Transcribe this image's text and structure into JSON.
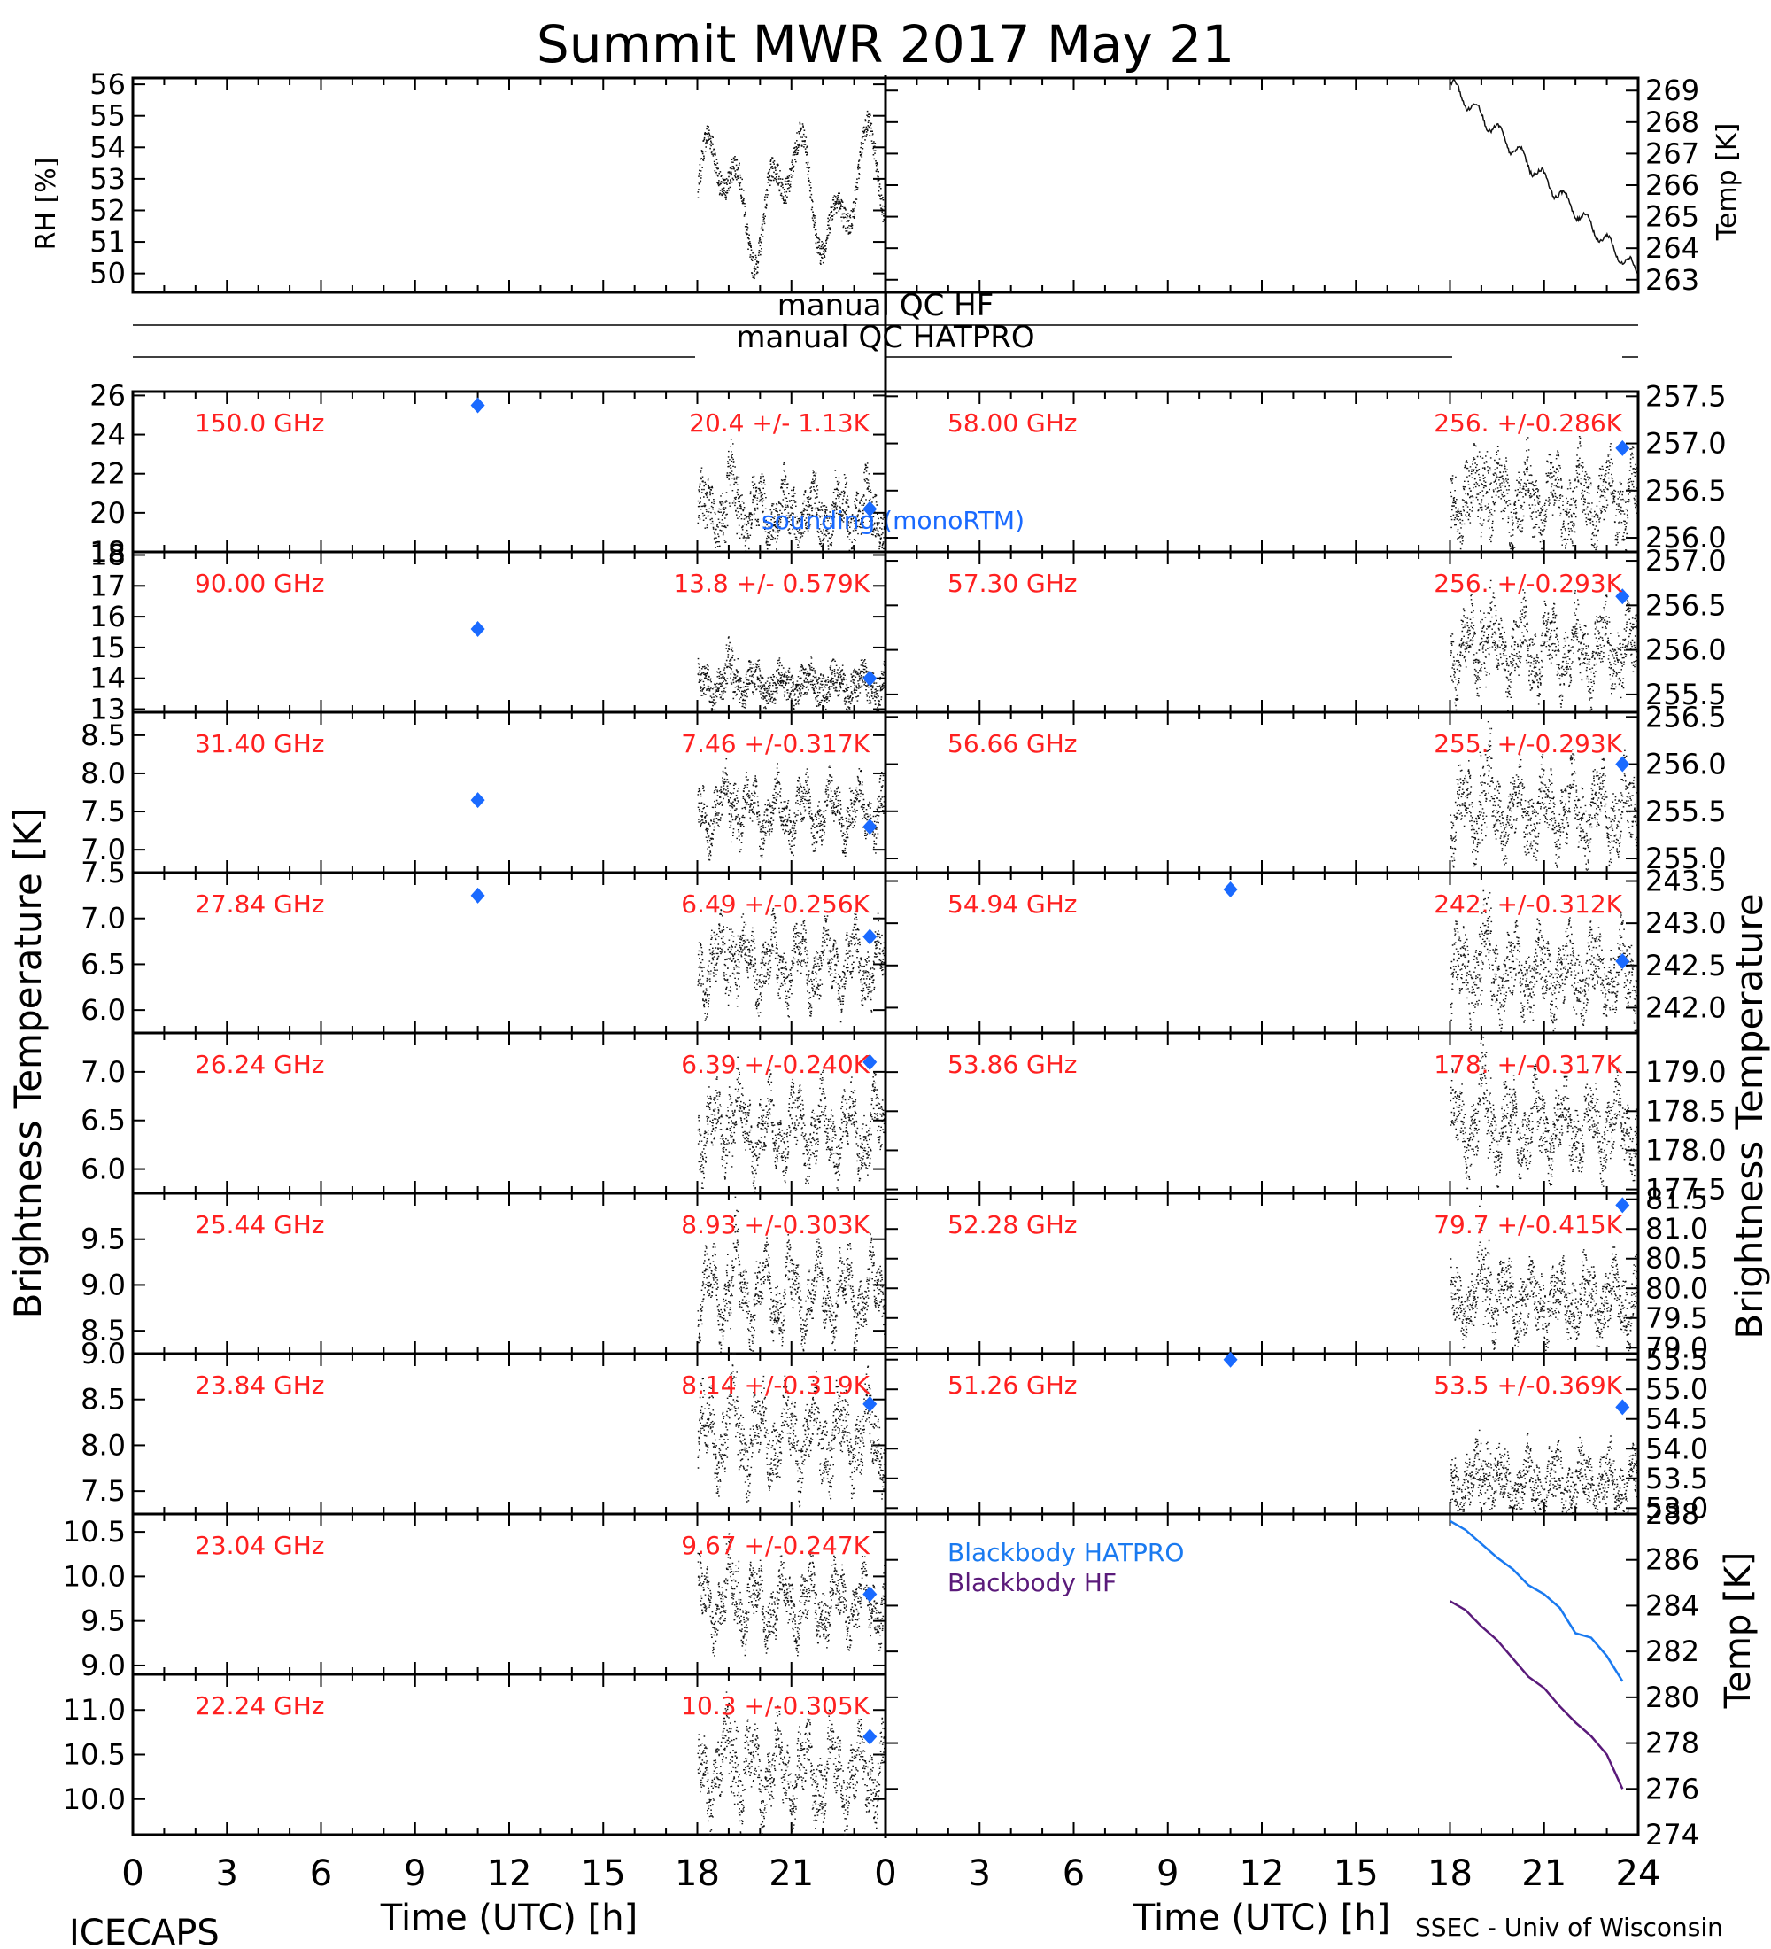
{
  "title": "Summit MWR 2017 May 21",
  "colors": {
    "axis": "#000000",
    "data": "#111111",
    "label_red": "#ff2020",
    "sounding_blue": "#1a6aff",
    "bb_hatpro": "#1a7af0",
    "bb_hf": "#5a1a7a"
  },
  "met": {
    "rh_label": "RH [%]",
    "rh_ticks": [
      "56",
      "55",
      "54",
      "53",
      "52",
      "51",
      "50"
    ],
    "temp_label": "Temp [K]",
    "temp_ticks": [
      "269",
      "268",
      "267",
      "266",
      "265",
      "264",
      "263"
    ]
  },
  "qc": {
    "hf_label": "manual QC HF",
    "hatpro_label": "manual QC HATPRO"
  },
  "left_axis_label": "Brightness Temperature [K]",
  "right_axis_label": "Brightness Temperature",
  "sounding_label": "sounding (monoRTM)",
  "bb_axis_label": "Temp [K]",
  "bb_legend": [
    "Blackbody HATPRO",
    "Blackbody HF"
  ],
  "bb_ticks": [
    "288",
    "286",
    "284",
    "282",
    "280",
    "278",
    "276",
    "274"
  ],
  "x_ticks": [
    "0",
    "3",
    "6",
    "9",
    "12",
    "15",
    "18",
    "21",
    "24"
  ],
  "x_ticks_left": [
    "0",
    "3",
    "6",
    "9",
    "12",
    "15",
    "18",
    "21"
  ],
  "xlabel": "Time (UTC) [h]",
  "bottom_left_text": "ICECAPS",
  "bottom_right_text": "SSEC - Univ of Wisconsin",
  "chart_data": [
    {
      "type": "scatter",
      "channel": "150.0 GHz",
      "stats": "20.4 +/-  1.13K",
      "ylim": [
        18,
        26.2
      ],
      "ticks": [
        "26",
        "24",
        "22",
        "20",
        "18"
      ],
      "tickvals": [
        26,
        24,
        22,
        20,
        18
      ],
      "base": 20.0,
      "amp": 0.9,
      "noise": 1.2,
      "sounding": [
        [
          11,
          25.5
        ],
        [
          23.5,
          20.2
        ]
      ]
    },
    {
      "type": "scatter",
      "channel": "90.00 GHz",
      "stats": "13.8 +/- 0.579K",
      "ylim": [
        12.9,
        18.1
      ],
      "ticks": [
        "18",
        "17",
        "16",
        "15",
        "14",
        "13"
      ],
      "tickvals": [
        18,
        17,
        16,
        15,
        14,
        13
      ],
      "base": 13.8,
      "amp": 0.3,
      "noise": 0.5,
      "sounding": [
        [
          11,
          15.6
        ],
        [
          23.5,
          14.0
        ]
      ]
    },
    {
      "type": "scatter",
      "channel": "31.40 GHz",
      "stats": "7.46 +/-0.317K",
      "ylim": [
        6.7,
        8.8
      ],
      "ticks": [
        "8.5",
        "8.0",
        "7.5",
        "7.0"
      ],
      "tickvals": [
        8.5,
        8.0,
        7.5,
        7.0
      ],
      "base": 7.5,
      "amp": 0.25,
      "noise": 0.25,
      "sounding": [
        [
          11,
          7.65
        ],
        [
          23.5,
          7.3
        ]
      ]
    },
    {
      "type": "scatter",
      "channel": "27.84 GHz",
      "stats": "6.49 +/-0.256K",
      "ylim": [
        5.75,
        7.5
      ],
      "ticks": [
        "7.5",
        "7.0",
        "6.5",
        "6.0"
      ],
      "tickvals": [
        7.5,
        7.0,
        6.5,
        6.0
      ],
      "base": 6.5,
      "amp": 0.25,
      "noise": 0.25,
      "sounding": [
        [
          11,
          7.25
        ],
        [
          23.5,
          6.8
        ]
      ]
    },
    {
      "type": "scatter",
      "channel": "26.24 GHz",
      "stats": "6.39 +/-0.240K",
      "ylim": [
        5.75,
        7.4
      ],
      "ticks": [
        "7.0",
        "6.5",
        "6.0"
      ],
      "tickvals": [
        7.0,
        6.5,
        6.0
      ],
      "base": 6.4,
      "amp": 0.25,
      "noise": 0.25,
      "sounding": [
        [
          23.5,
          7.1
        ]
      ]
    },
    {
      "type": "scatter",
      "channel": "25.44 GHz",
      "stats": "8.93 +/-0.303K",
      "ylim": [
        8.25,
        10.0
      ],
      "ticks": [
        "9.5",
        "9.0",
        "8.5"
      ],
      "tickvals": [
        9.5,
        9.0,
        8.5
      ],
      "base": 8.9,
      "amp": 0.3,
      "noise": 0.25,
      "sounding": []
    },
    {
      "type": "scatter",
      "channel": "23.84 GHz",
      "stats": "8.14 +/-0.319K",
      "ylim": [
        7.25,
        9.0
      ],
      "ticks": [
        "9.0",
        "8.5",
        "8.0",
        "7.5"
      ],
      "tickvals": [
        9.0,
        8.5,
        8.0,
        7.5
      ],
      "base": 8.1,
      "amp": 0.3,
      "noise": 0.3,
      "sounding": [
        [
          23.5,
          8.45
        ]
      ]
    },
    {
      "type": "scatter",
      "channel": "23.04 GHz",
      "stats": "9.67 +/-0.247K",
      "ylim": [
        8.9,
        10.7
      ],
      "ticks": [
        "10.5",
        "10.0",
        "9.5",
        "9.0"
      ],
      "tickvals": [
        10.5,
        10.0,
        9.5,
        9.0
      ],
      "base": 9.7,
      "amp": 0.25,
      "noise": 0.25,
      "sounding": [
        [
          23.5,
          9.8
        ]
      ]
    },
    {
      "type": "scatter",
      "channel": "22.24 GHz",
      "stats": "10.3 +/-0.305K",
      "ylim": [
        9.6,
        11.4
      ],
      "ticks": [
        "11.0",
        "10.5",
        "10.0"
      ],
      "tickvals": [
        11.0,
        10.5,
        10.0
      ],
      "base": 10.3,
      "amp": 0.3,
      "noise": 0.3,
      "sounding": [
        [
          23.5,
          10.7
        ]
      ]
    },
    {
      "type": "scatter",
      "channel": "58.00 GHz",
      "stats": "256. +/-0.286K",
      "ylim": [
        255.85,
        257.55
      ],
      "ticks": [
        "257.5",
        "257.0",
        "256.5",
        "256.0"
      ],
      "tickvals": [
        257.5,
        257.0,
        256.5,
        256.0
      ],
      "base": 256.4,
      "amp": 0.25,
      "noise": 0.3,
      "sounding": [
        [
          23.5,
          256.95
        ]
      ]
    },
    {
      "type": "scatter",
      "channel": "57.30 GHz",
      "stats": "256. +/-0.293K",
      "ylim": [
        255.3,
        257.1
      ],
      "ticks": [
        "257.0",
        "256.5",
        "256.0",
        "255.5"
      ],
      "tickvals": [
        257.0,
        256.5,
        256.0,
        255.5
      ],
      "base": 256.0,
      "amp": 0.25,
      "noise": 0.3,
      "sounding": [
        [
          23.5,
          256.6
        ]
      ]
    },
    {
      "type": "scatter",
      "channel": "56.66 GHz",
      "stats": "255. +/-0.293K",
      "ylim": [
        254.85,
        256.55
      ],
      "ticks": [
        "256.5",
        "256.0",
        "255.5",
        "255.0"
      ],
      "tickvals": [
        256.5,
        256.0,
        255.5,
        255.0
      ],
      "base": 255.5,
      "amp": 0.25,
      "noise": 0.3,
      "sounding": [
        [
          23.5,
          256.0
        ]
      ]
    },
    {
      "type": "scatter",
      "channel": "54.94 GHz",
      "stats": "242. +/-0.312K",
      "ylim": [
        241.7,
        243.6
      ],
      "ticks": [
        "243.5",
        "243.0",
        "242.5",
        "242.0"
      ],
      "tickvals": [
        243.5,
        243.0,
        242.5,
        242.0
      ],
      "base": 242.4,
      "amp": 0.25,
      "noise": 0.35,
      "sounding": [
        [
          11,
          243.4
        ],
        [
          23.5,
          242.55
        ]
      ]
    },
    {
      "type": "scatter",
      "channel": "53.86 GHz",
      "stats": "178. +/-0.317K",
      "ylim": [
        177.45,
        179.5
      ],
      "ticks": [
        "179.0",
        "178.5",
        "178.0",
        "177.5"
      ],
      "tickvals": [
        179.0,
        178.5,
        178.0,
        177.5
      ],
      "base": 178.3,
      "amp": 0.3,
      "noise": 0.35,
      "sounding": []
    },
    {
      "type": "scatter",
      "channel": "52.28 GHz",
      "stats": "79.7 +/-0.415K",
      "ylim": [
        78.9,
        81.6
      ],
      "ticks": [
        "81.5",
        "81.0",
        "80.5",
        "80.0",
        "79.5",
        "79.0"
      ],
      "tickvals": [
        81.5,
        81.0,
        80.5,
        80.0,
        79.5,
        79.0
      ],
      "base": 79.8,
      "amp": 0.3,
      "noise": 0.45,
      "sounding": [
        [
          23.5,
          81.4
        ]
      ]
    },
    {
      "type": "scatter",
      "channel": "51.26 GHz",
      "stats": "53.5 +/-0.369K",
      "ylim": [
        52.9,
        55.6
      ],
      "ticks": [
        "55.5",
        "55.0",
        "54.5",
        "54.0",
        "53.5",
        "53.0"
      ],
      "tickvals": [
        55.5,
        55.0,
        54.5,
        54.0,
        53.5,
        53.0
      ],
      "base": 53.4,
      "amp": 0.3,
      "noise": 0.4,
      "sounding": [
        [
          11,
          55.5
        ],
        [
          23.5,
          54.7
        ]
      ]
    },
    {
      "type": "line",
      "name_hatpro": "Blackbody HATPRO",
      "name_hf": "Blackbody HF",
      "ylim": [
        274,
        288
      ],
      "x": [
        18.0,
        18.5,
        19.0,
        19.5,
        20.0,
        20.5,
        21.0,
        21.5,
        22.0,
        22.5,
        23.0,
        23.5
      ],
      "hatpro": [
        287.7,
        287.3,
        286.7,
        286.1,
        285.6,
        284.9,
        284.5,
        283.9,
        282.8,
        282.6,
        281.8,
        280.7
      ],
      "hf": [
        284.2,
        283.8,
        283.1,
        282.5,
        281.7,
        280.9,
        280.4,
        279.6,
        278.9,
        278.3,
        277.5,
        276.0
      ]
    }
  ]
}
